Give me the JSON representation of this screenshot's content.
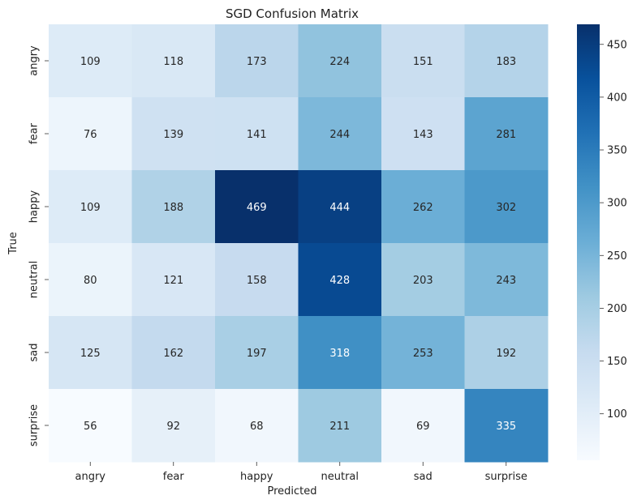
{
  "chart_data": {
    "type": "heatmap",
    "title": "SGD Confusion Matrix",
    "xlabel": "Predicted",
    "ylabel": "True",
    "x_categories": [
      "angry",
      "fear",
      "happy",
      "neutral",
      "sad",
      "surprise"
    ],
    "y_categories": [
      "angry",
      "fear",
      "happy",
      "neutral",
      "sad",
      "surprise"
    ],
    "values": [
      [
        109,
        118,
        173,
        224,
        151,
        183
      ],
      [
        76,
        139,
        141,
        244,
        143,
        281
      ],
      [
        109,
        188,
        469,
        444,
        262,
        302
      ],
      [
        80,
        121,
        158,
        428,
        203,
        243
      ],
      [
        125,
        162,
        197,
        318,
        253,
        192
      ],
      [
        56,
        92,
        68,
        211,
        69,
        335
      ]
    ],
    "colormap": "Blues",
    "vmin": 56,
    "vmax": 469,
    "colorbar_ticks": [
      100,
      150,
      200,
      250,
      300,
      350,
      400,
      450
    ],
    "annotations": true
  }
}
